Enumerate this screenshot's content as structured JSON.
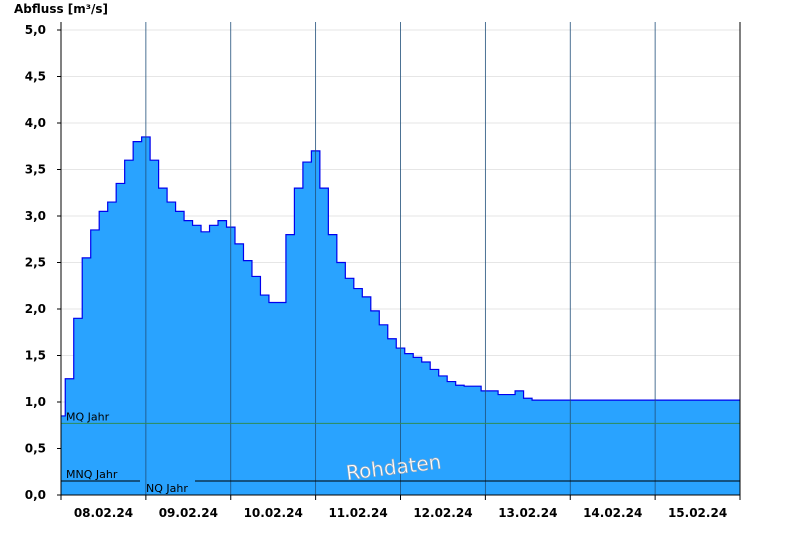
{
  "chart_data": {
    "type": "area",
    "title": "",
    "ylabel": "Abfluss [m³/s]",
    "xlabel": "",
    "ylim": [
      0,
      5.2
    ],
    "y_ticks": [
      "0,0",
      "0,5",
      "1,0",
      "1,5",
      "2,0",
      "2,5",
      "3,0",
      "3,5",
      "4,0",
      "4,5",
      "5,0"
    ],
    "x_ticks": [
      "08.02.24",
      "09.02.24",
      "10.02.24",
      "11.02.24",
      "12.02.24",
      "13.02.24",
      "14.02.24",
      "15.02.24"
    ],
    "x_range_days": [
      7.0,
      15.0
    ],
    "grid": true,
    "fill_color": "#29a3ff",
    "line_color": "#0000ee",
    "series": [
      {
        "x": [
          7.0,
          7.1,
          7.2,
          7.3,
          7.4,
          7.5,
          7.6,
          7.7,
          7.8,
          7.9,
          8.0,
          8.1,
          8.2,
          8.3,
          8.4,
          8.5,
          8.6,
          8.7,
          8.8,
          8.9,
          9.0,
          9.1,
          9.2,
          9.3,
          9.4,
          9.5,
          9.6,
          9.7,
          9.8,
          9.9,
          10.0,
          10.1,
          10.2,
          10.3,
          10.4,
          10.5,
          10.6,
          10.7,
          10.8,
          10.9,
          11.0,
          11.1,
          11.2,
          11.3,
          11.4,
          11.5,
          11.6,
          11.7,
          11.8,
          11.9,
          12.0,
          12.1,
          12.2,
          12.3,
          12.4,
          12.5,
          12.6,
          12.7,
          12.8,
          12.9,
          13.0,
          13.1,
          13.2,
          13.3,
          13.4,
          13.5,
          13.6,
          13.7,
          13.8,
          13.9,
          14.0,
          14.1,
          14.2,
          14.3,
          14.4,
          14.5,
          14.6,
          14.7,
          14.8,
          14.9,
          15.0
        ],
        "values": [
          0.85,
          1.25,
          1.9,
          2.55,
          2.85,
          3.05,
          3.15,
          3.35,
          3.6,
          3.8,
          3.85,
          3.6,
          3.3,
          3.15,
          3.05,
          2.95,
          2.9,
          2.83,
          2.9,
          2.95,
          2.88,
          2.7,
          2.52,
          2.35,
          2.15,
          2.07,
          2.07,
          2.8,
          3.3,
          3.58,
          3.7,
          3.3,
          2.8,
          2.5,
          2.33,
          2.22,
          2.13,
          1.98,
          1.83,
          1.68,
          1.58,
          1.52,
          1.48,
          1.43,
          1.35,
          1.28,
          1.22,
          1.18,
          1.17,
          1.17,
          1.12,
          1.12,
          1.08,
          1.08,
          1.12,
          1.04,
          1.02,
          1.02,
          1.02,
          1.02,
          1.02,
          1.02,
          1.02,
          1.02,
          1.02,
          1.02,
          1.02,
          1.02,
          1.02,
          1.02,
          1.02,
          1.02,
          1.02,
          1.02,
          1.02,
          1.02,
          1.02,
          1.02,
          1.02,
          1.02,
          1.02
        ]
      }
    ],
    "reference_lines": [
      {
        "name": "MQ Jahr",
        "value": 0.77,
        "color": "#2e8b57"
      },
      {
        "name": "MNQ Jahr",
        "value": 0.15,
        "color": "#000000"
      },
      {
        "name": "NQ Jahr",
        "value": 0.15,
        "color": "#000000"
      }
    ],
    "watermark": "Rohdaten"
  }
}
